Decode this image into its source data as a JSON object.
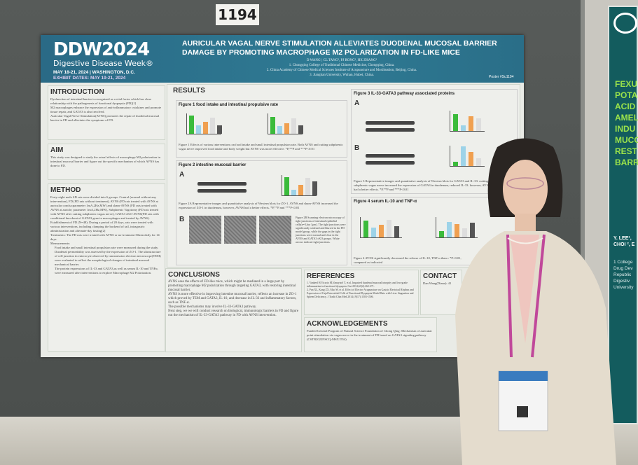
{
  "board_number": "1194",
  "poster": {
    "logo": {
      "name": "DDW2024",
      "subtitle": "Digestive Disease Week®",
      "dates": "MAY 18-21, 2024 | WASHINGTON, D.C.",
      "exhibit": "EXHIBIT DATES: MAY 19-21, 2024"
    },
    "title": "AURICULAR VAGAL NERVE STIMULATION ALLEVIATES DUODENAL MUCOSAL BARRIER DAMAGE BY PROMOTING MACROPHAGE M2 POLARIZATION IN FD-LIKE MICE",
    "authors": "D WANG¹, CL TANG², PJ RONG², HX ZHANG³",
    "affiliations": [
      "1. Chongqing College of Traditional Chinese Medicine, Chongqing, China.",
      "2. China Academy of Chinese Medical Sciences Institute of Acupuncture and Moxibustion, Beijing, China.",
      "3. Jianghan University, Wuhan, Hubei, China."
    ],
    "poster_number": "Poster #Su1194",
    "introduction": {
      "heading": "INTRODUCTION",
      "items": [
        "Dysfunction of intestinal barrier is recognized as a vital factor which has close relationship with the pathogenesis of functional dyspepsia (FD)[1]",
        "M2 macrophages enhance the expression of anti-inflammatory cytokines and promote tissue repair, and GATA3 is also involved.",
        "Auricular Vagal Nerve Stimulation(AVNS) promotes the repair of duodenal mucosal barrier in FD and alleviates the symptoms of FD."
      ]
    },
    "aim": {
      "heading": "AIM",
      "items": [
        "This study was designed to study the actual effects of macrophage M2 polarization in intestinal mucosal barrier and figure out the specific mechanism of which AVNS has done to FD."
      ]
    },
    "method": {
      "heading": "METHOD",
      "items": [
        "Forty-eight male SD rats were divided into 6 groups: Control (normal without any intervention), FD (FD rats without treatment), AVNS (FD rats treated with AVNS at auricular concha;parameter 1mA,2Hz,MW) and sham-AVNS (FD rats treated with AVNS at auricle; parameter 1mA,2Hz,MW), Subphrenic Vagotomy (FD rats treated with AVNS after cutting subphrenic vagus nerve), GATA3 cKO-AVNS(FD rats with conditional knockout of GATA3 gene in macrophages and treated by AVNS).",
        "Establishment of FD (N=48): During a period of 20 days, rats were treated with various interventions, including clamping the backend of tail, intragastric administration and alternate-day fasting[2]",
        "Treatments: The FD rats were treated with AVNS or no-treatment 30min daily for 14 days.",
        "Measurements:"
      ],
      "sub_items": [
        "Food intake and small intestinal propulsion rate were measured during the study.",
        "Duodenal permeability was assessed by the expression of ZO-1. The ultrastructure of cell junction in enterocyte observed by transmission electron microscope(TEM) were evaluated to reflect the morphological changes of intestinal mucosal mechanical barrier.",
        "The protein expressions of IL-33 and GATA3,as well as serum IL-10 and TNFα, were measured after interventions to explore Macrophage M2 Polarization."
      ]
    },
    "results": {
      "heading": "RESULTS",
      "fig1": {
        "title": "Figure 1 food intake and intestinal propulsive rate",
        "caption": "Figure 1 Effects of various interventions on food intake and small intestinal propulsion rate. Both AVNS and cutting subphrenic vagus nerve improved food intake and body weight but AVNS was more effective. *P,**P and ***P<0.01"
      },
      "fig2": {
        "title": "Figure 2 intestine mucosal barrier",
        "panel_a": "A",
        "panel_b": "B",
        "caption_a": "Figure 2A Representative images and quantitative analysis of Western blots for ZO-1. AVNS and sham-AVNS increased the expression of ZO-1 in duodenum, however, AVNS had a better effects. *P,**P and ***P<0.01",
        "caption_b": "Figure 2B Scanning electron microscopy of tight junctions of intestinal epithelial cells(n=3,bar 1μm). The tight junctions were significantly widened and blurred in the FD model group, while the gaps in the tight junctions were normal and clear in the AVNS and GATA3 cKO groups. White arrows indicate tight junctions."
      },
      "fig3": {
        "title": "Figure 3 IL-33-GATA3 pathway associated proteins",
        "panel_a": "A",
        "panel_b": "B",
        "caption": "Figure 3 Representative images and quantitative analysis of Western blots for GATA3 and IL-33. cutting subphrenic vagus nerve increased the expression of GATA3 in duodenum, reduced IL-33. however, AVNS had a better effects. *P,**P and ***P<0.01"
      },
      "fig4": {
        "title": "Figure 4 serum IL-10 and TNF-α",
        "caption": "Figure 4 AVNS significantly decreased the release of IL-10, TNF-α than c *P<0.01, compared as indicated"
      }
    },
    "conclusions": {
      "heading": "CONCLUSIONS",
      "items": [
        "AVNS ease the effects of FD-like mice, which might be mediated in a large part by promoting macrophage M2 polarization through targeting GATA3, with restoring intestinal mucosal barrier.",
        "AVNS is more effective in improving intestine mucosal barrier, reflects an increase in ZO-1 which proved by TEM and GATA3, IL-10, and decrease in IL-33 and inflammatory factors, such as TNF-α.",
        "The possible mechanisms may involve IL-33-GATA3 pathway.",
        "Next step, we we will conduct research on biological, immunologic barriers in FD and figure out the mechanism of IL-33-GATA3 pathway in FD with AVNS intervention."
      ]
    },
    "references": {
      "heading": "REFERENCES",
      "items": [
        "1. Vanheel H,Vicario M,Vanuytsel T, et al. Impaired duodenal mucosal integrity and low-grade inflammation in functional dyspepsia. Gut 2014;63(2):262-271.",
        "2. Pan XL, Kang ZX, Mao W, et al. Effect of Electro-Acupuncture on Gastric Electrical Rhythm and Expression of Cajal Interstitial Cells of Functional Dyspepsia Model Rats with Liver Stagnation and Spleen Deficiency. J Tradit Chin Med 2014;19(17):1503-1506."
      ]
    },
    "contact": {
      "heading": "CONTACT",
      "text": "Dan Wang(Diana): 41"
    },
    "acknowledgements": {
      "heading": "ACKNOWLEDGEMENTS",
      "text": "Funded General Program of Natural Science Foundation of Chong Qing: Mechanism of auricular point stimulation via vagus nerve in the treatment of FD based on GATA3 signaling pathway (CSTB2022NSCQ-MSX1554)"
    }
  },
  "neighbor_poster": {
    "title": "FEXU POTA ACID AMEL INDU MUCO REST BARR",
    "authors": "Y. LEE¹, CHOI ², E",
    "affiliations": "1 College Drug Dev Republic Digestiv University"
  },
  "colors": {
    "board": "#525654",
    "poster_header": "#2c7390",
    "neighbor_poster": "#135c5e",
    "blazer": "#e4dccd",
    "lanyard": "#c0489a"
  }
}
